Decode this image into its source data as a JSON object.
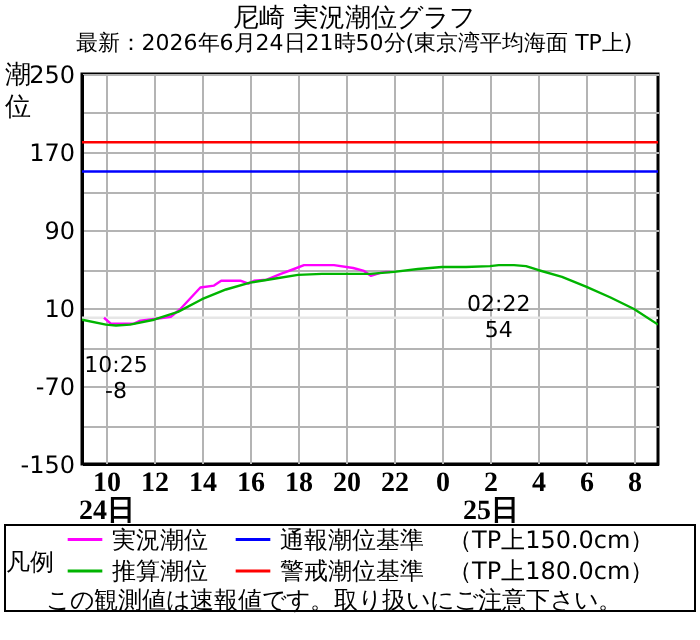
{
  "chart_data": {
    "type": "line",
    "title": "尼崎 実況潮位グラフ",
    "subtitle": "最新：2026年6月24日21時50分(東京湾平均海面 TP上)",
    "ylabel": "潮位",
    "legend_title": "凡例",
    "xlim": [
      "2026-06-24T09:00",
      "2026-06-25T09:00"
    ],
    "xticks": [
      {
        "value": "2026-06-24T10:00",
        "label": "10\n24日"
      },
      {
        "value": "2026-06-24T12:00",
        "label": "12"
      },
      {
        "value": "2026-06-24T14:00",
        "label": "14"
      },
      {
        "value": "2026-06-24T16:00",
        "label": "16"
      },
      {
        "value": "2026-06-24T18:00",
        "label": "18"
      },
      {
        "value": "2026-06-24T20:00",
        "label": "20"
      },
      {
        "value": "2026-06-24T22:00",
        "label": "22"
      },
      {
        "value": "2026-06-25T00:00",
        "label": "0"
      },
      {
        "value": "2026-06-25T02:00",
        "label": "2\n25日"
      },
      {
        "value": "2026-06-25T04:00",
        "label": "4"
      },
      {
        "value": "2026-06-25T06:00",
        "label": "6"
      },
      {
        "value": "2026-06-25T08:00",
        "label": "8"
      }
    ],
    "ylim": [
      -150,
      250
    ],
    "yticks": [
      -150,
      {
        "value": -110,
        "label": null
      },
      -70,
      {
        "value": -30,
        "label": null
      },
      10,
      {
        "value": 50,
        "label": null
      },
      90,
      {
        "value": 130,
        "label": null
      },
      170,
      {
        "value": 210,
        "label": null
      },
      250
    ],
    "grid": true,
    "legend": "bottom",
    "series": [
      {
        "name": "実況潮位",
        "color": "#ff00ff",
        "x": [
          "2026-06-24T09:55",
          "2026-06-24T10:12",
          "2026-06-24T11:10",
          "2026-06-24T11:26",
          "2026-06-24T12:06",
          "2026-06-24T12:42",
          "2026-06-24T13:06",
          "2026-06-24T13:56",
          "2026-06-24T14:30",
          "2026-06-24T14:48",
          "2026-06-24T15:36",
          "2026-06-24T15:56",
          "2026-06-24T16:10",
          "2026-06-24T16:42",
          "2026-06-24T17:17",
          "2026-06-24T17:50",
          "2026-06-24T18:15",
          "2026-06-24T18:56",
          "2026-06-24T19:30",
          "2026-06-24T20:18",
          "2026-06-24T20:45",
          "2026-06-24T21:02",
          "2026-06-24T21:26",
          "2026-06-24T21:40",
          "2026-06-24T21:50"
        ],
        "values": [
          0,
          -6,
          -6,
          -3,
          -1,
          1,
          9,
          31,
          33,
          38,
          38,
          35,
          38,
          39,
          45,
          50,
          54,
          54,
          54,
          51,
          48,
          43,
          46,
          47,
          47
        ]
      },
      {
        "name": "推算潮位",
        "color": "#00b400",
        "x": [
          "2026-06-24T09:00",
          "2026-06-24T10:00",
          "2026-06-24T10:25",
          "2026-06-24T11:00",
          "2026-06-24T12:00",
          "2026-06-24T13:00",
          "2026-06-24T14:00",
          "2026-06-24T15:00",
          "2026-06-24T16:00",
          "2026-06-24T17:00",
          "2026-06-24T18:00",
          "2026-06-24T19:00",
          "2026-06-24T20:00",
          "2026-06-24T21:00",
          "2026-06-24T22:00",
          "2026-06-24T23:00",
          "2026-06-25T00:00",
          "2026-06-25T01:00",
          "2026-06-25T02:00",
          "2026-06-25T02:22",
          "2026-06-25T03:00",
          "2026-06-25T03:30",
          "2026-06-25T04:00",
          "2026-06-25T05:00",
          "2026-06-25T06:00",
          "2026-06-25T07:00",
          "2026-06-25T08:00",
          "2026-06-25T09:00"
        ],
        "values": [
          -2,
          -7,
          -8,
          -7,
          -2,
          6,
          19,
          29,
          36,
          40,
          44,
          45,
          45,
          45,
          47,
          50,
          52,
          52,
          53,
          54,
          54,
          53,
          49,
          42,
          32,
          21,
          9,
          -7
        ]
      }
    ],
    "ref_lines": [
      {
        "axis": "y",
        "value": 150,
        "label": "通報潮位基準　（TP上150.0cm）",
        "color": "#0000ff"
      },
      {
        "axis": "y",
        "value": 180,
        "label": "警戒潮位基準　（TP上180.0cm）",
        "color": "#ff0000"
      },
      {
        "axis": "y",
        "value": 0,
        "color": "#e6e6e6"
      }
    ],
    "annotations": [
      {
        "text": "10:25\n-8",
        "x": "2026-06-24T10:25",
        "y": -8
      },
      {
        "text": "02:22\n54",
        "x": "2026-06-25T02:22",
        "y": 54
      },
      "この観測値は速報値です。取り扱いにご注意下さい。"
    ]
  }
}
